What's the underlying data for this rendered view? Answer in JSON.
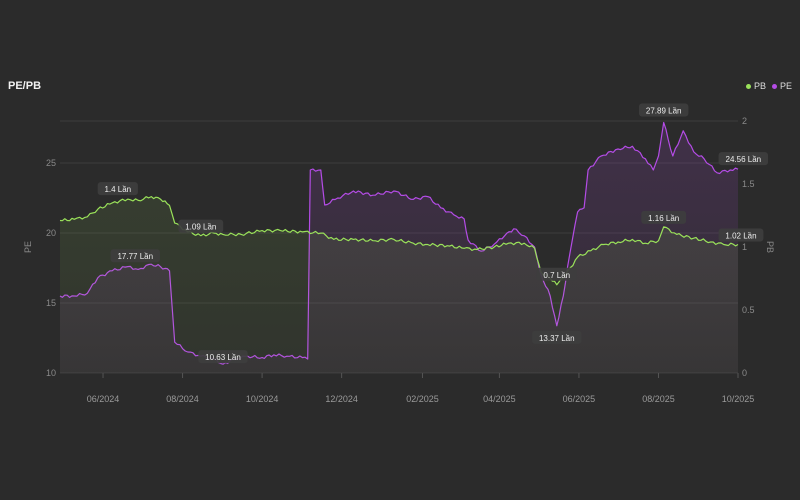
{
  "title": "PE/PB",
  "legend": [
    {
      "name": "PB",
      "color": "#9ae25a"
    },
    {
      "name": "PE",
      "color": "#b44ce6"
    }
  ],
  "chart_data": {
    "type": "line",
    "title": "PE/PB",
    "ylabel_left": "PE",
    "ylabel_right": "PB",
    "x_ticks": [
      "06/2024",
      "08/2024",
      "10/2024",
      "12/2024",
      "02/2025",
      "04/2025",
      "06/2025",
      "08/2025",
      "10/2025"
    ],
    "x_tick_dates": [
      "2024-06-01",
      "2024-08-01",
      "2024-10-01",
      "2024-12-01",
      "2025-02-01",
      "2025-04-01",
      "2025-06-01",
      "2025-08-01",
      "2025-10-01"
    ],
    "x_range": [
      "2024-04-29",
      "2025-10-01"
    ],
    "left_axis": {
      "ticks": [
        10,
        15,
        20,
        25
      ],
      "range": [
        10,
        28
      ]
    },
    "right_axis": {
      "ticks": [
        0,
        0.5,
        1,
        1.5,
        2
      ],
      "range": [
        0,
        2
      ]
    },
    "grid": true,
    "legend_position": "top-right",
    "series": [
      {
        "name": "PE",
        "color": "#b44ce6",
        "axis": "left",
        "points": [
          [
            "2024-04-29",
            15.5
          ],
          [
            "2024-05-10",
            15.5
          ],
          [
            "2024-05-20",
            15.7
          ],
          [
            "2024-05-28",
            16.8
          ],
          [
            "2024-06-08",
            17.3
          ],
          [
            "2024-06-20",
            17.6
          ],
          [
            "2024-06-28",
            17.4
          ],
          [
            "2024-07-08",
            17.77
          ],
          [
            "2024-07-15",
            17.6
          ],
          [
            "2024-07-22",
            17.3
          ],
          [
            "2024-07-26",
            12.2
          ],
          [
            "2024-08-05",
            11.5
          ],
          [
            "2024-08-15",
            11.2
          ],
          [
            "2024-08-25",
            11.0
          ],
          [
            "2024-09-01",
            10.63
          ],
          [
            "2024-09-10",
            11.0
          ],
          [
            "2024-09-20",
            11.2
          ],
          [
            "2024-10-01",
            11.1
          ],
          [
            "2024-10-10",
            11.3
          ],
          [
            "2024-10-20",
            11.2
          ],
          [
            "2024-11-01",
            11.1
          ],
          [
            "2024-11-05",
            11.0
          ],
          [
            "2024-11-07",
            24.5
          ],
          [
            "2024-11-15",
            24.5
          ],
          [
            "2024-11-18",
            22.0
          ],
          [
            "2024-11-28",
            22.5
          ],
          [
            "2024-12-10",
            23.0
          ],
          [
            "2024-12-25",
            22.7
          ],
          [
            "2025-01-10",
            23.0
          ],
          [
            "2025-01-25",
            22.4
          ],
          [
            "2025-02-05",
            22.6
          ],
          [
            "2025-02-15",
            21.8
          ],
          [
            "2025-02-25",
            21.3
          ],
          [
            "2025-03-05",
            21.0
          ],
          [
            "2025-03-08",
            19.5
          ],
          [
            "2025-03-18",
            18.7
          ],
          [
            "2025-03-28",
            19.2
          ],
          [
            "2025-04-05",
            19.8
          ],
          [
            "2025-04-12",
            20.3
          ],
          [
            "2025-04-20",
            19.8
          ],
          [
            "2025-04-28",
            19.0
          ],
          [
            "2025-05-03",
            17.0
          ],
          [
            "2025-05-10",
            15.5
          ],
          [
            "2025-05-15",
            13.37
          ],
          [
            "2025-05-20",
            15.5
          ],
          [
            "2025-05-25",
            18.5
          ],
          [
            "2025-05-31",
            21.5
          ],
          [
            "2025-06-05",
            21.8
          ],
          [
            "2025-06-08",
            24.5
          ],
          [
            "2025-06-18",
            25.5
          ],
          [
            "2025-07-01",
            26.0
          ],
          [
            "2025-07-12",
            26.2
          ],
          [
            "2025-07-22",
            25.3
          ],
          [
            "2025-07-28",
            24.5
          ],
          [
            "2025-08-01",
            25.5
          ],
          [
            "2025-08-05",
            27.89
          ],
          [
            "2025-08-12",
            25.5
          ],
          [
            "2025-08-20",
            27.3
          ],
          [
            "2025-08-28",
            25.8
          ],
          [
            "2025-09-05",
            25.3
          ],
          [
            "2025-09-15",
            24.3
          ],
          [
            "2025-09-25",
            24.5
          ],
          [
            "2025-10-01",
            24.56
          ]
        ],
        "labels": [
          {
            "date": "2024-07-08",
            "text": "17.77 Lần"
          },
          {
            "date": "2024-09-01",
            "text": "10.63 Lần"
          },
          {
            "date": "2025-05-15",
            "text": "13.37 Lần"
          },
          {
            "date": "2025-08-05",
            "text": "27.89 Lần"
          },
          {
            "date": "2025-10-01",
            "text": "24.56 Lần"
          }
        ]
      },
      {
        "name": "PB",
        "color": "#9ae25a",
        "axis": "right",
        "points": [
          [
            "2024-04-29",
            1.21
          ],
          [
            "2024-05-10",
            1.22
          ],
          [
            "2024-05-20",
            1.24
          ],
          [
            "2024-05-28",
            1.3
          ],
          [
            "2024-06-08",
            1.35
          ],
          [
            "2024-06-20",
            1.38
          ],
          [
            "2024-06-28",
            1.37
          ],
          [
            "2024-07-08",
            1.4
          ],
          [
            "2024-07-15",
            1.38
          ],
          [
            "2024-07-22",
            1.33
          ],
          [
            "2024-07-26",
            1.19
          ],
          [
            "2024-08-05",
            1.12
          ],
          [
            "2024-08-15",
            1.09
          ],
          [
            "2024-08-25",
            1.11
          ],
          [
            "2024-09-01",
            1.1
          ],
          [
            "2024-09-15",
            1.1
          ],
          [
            "2024-10-01",
            1.13
          ],
          [
            "2024-10-15",
            1.13
          ],
          [
            "2024-11-01",
            1.12
          ],
          [
            "2024-11-15",
            1.11
          ],
          [
            "2024-11-25",
            1.06
          ],
          [
            "2024-12-10",
            1.06
          ],
          [
            "2024-12-25",
            1.05
          ],
          [
            "2025-01-10",
            1.06
          ],
          [
            "2025-01-25",
            1.03
          ],
          [
            "2025-02-05",
            1.02
          ],
          [
            "2025-02-20",
            1.01
          ],
          [
            "2025-03-05",
            0.99
          ],
          [
            "2025-03-15",
            0.98
          ],
          [
            "2025-03-28",
            1.0
          ],
          [
            "2025-04-08",
            1.03
          ],
          [
            "2025-04-20",
            1.03
          ],
          [
            "2025-04-28",
            0.99
          ],
          [
            "2025-05-03",
            0.8
          ],
          [
            "2025-05-10",
            0.75
          ],
          [
            "2025-05-15",
            0.7
          ],
          [
            "2025-05-22",
            0.78
          ],
          [
            "2025-05-31",
            0.92
          ],
          [
            "2025-06-10",
            0.97
          ],
          [
            "2025-06-20",
            1.02
          ],
          [
            "2025-07-01",
            1.04
          ],
          [
            "2025-07-12",
            1.06
          ],
          [
            "2025-07-22",
            1.03
          ],
          [
            "2025-08-01",
            1.05
          ],
          [
            "2025-08-05",
            1.16
          ],
          [
            "2025-08-15",
            1.1
          ],
          [
            "2025-08-28",
            1.07
          ],
          [
            "2025-09-10",
            1.04
          ],
          [
            "2025-09-20",
            1.02
          ],
          [
            "2025-10-01",
            1.02
          ]
        ],
        "labels": [
          {
            "date": "2024-06-20",
            "text": "1.4 Lần"
          },
          {
            "date": "2024-08-15",
            "text": "1.09 Lần"
          },
          {
            "date": "2025-05-15",
            "text": "0.7 Lần"
          },
          {
            "date": "2025-08-05",
            "text": "1.16 Lần"
          },
          {
            "date": "2025-10-01",
            "text": "1.02 Lần"
          }
        ]
      }
    ]
  }
}
